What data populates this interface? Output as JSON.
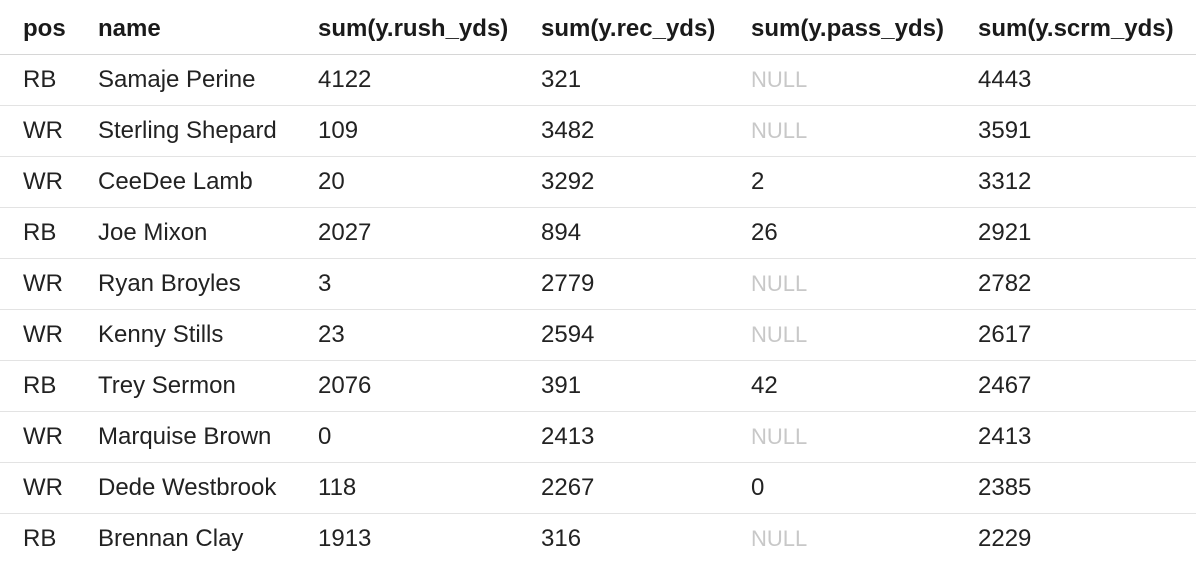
{
  "table": {
    "columns": [
      "pos",
      "name",
      "sum(y.rush_yds)",
      "sum(y.rec_yds)",
      "sum(y.pass_yds)",
      "sum(y.scrm_yds)"
    ],
    "null_color": "#c8c8c8",
    "rows": [
      [
        "RB",
        "Samaje Perine",
        "4122",
        "321",
        "NULL",
        "4443"
      ],
      [
        "WR",
        "Sterling Shepard",
        "109",
        "3482",
        "NULL",
        "3591"
      ],
      [
        "WR",
        "CeeDee Lamb",
        "20",
        "3292",
        "2",
        "3312"
      ],
      [
        "RB",
        "Joe Mixon",
        "2027",
        "894",
        "26",
        "2921"
      ],
      [
        "WR",
        "Ryan Broyles",
        "3",
        "2779",
        "NULL",
        "2782"
      ],
      [
        "WR",
        "Kenny Stills",
        "23",
        "2594",
        "NULL",
        "2617"
      ],
      [
        "RB",
        "Trey Sermon",
        "2076",
        "391",
        "42",
        "2467"
      ],
      [
        "WR",
        "Marquise Brown",
        "0",
        "2413",
        "NULL",
        "2413"
      ],
      [
        "WR",
        "Dede Westbrook",
        "118",
        "2267",
        "0",
        "2385"
      ],
      [
        "RB",
        "Brennan Clay",
        "1913",
        "316",
        "NULL",
        "2229"
      ]
    ]
  }
}
